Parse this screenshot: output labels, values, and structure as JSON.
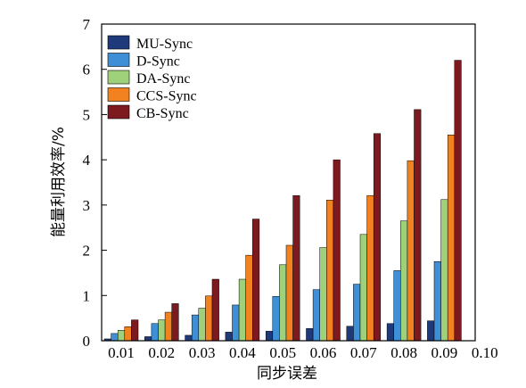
{
  "chart_data": {
    "type": "bar",
    "title": "",
    "xlabel": "同步误差",
    "ylabel": "能量利用效率/%",
    "x_ticks": [
      "0.01",
      "0.02",
      "0.03",
      "0.04",
      "0.05",
      "0.06",
      "0.07",
      "0.08",
      "0.09",
      "0.10"
    ],
    "categories": [
      "0.01",
      "0.02",
      "0.03",
      "0.04",
      "0.05",
      "0.06",
      "0.07",
      "0.08",
      "0.09"
    ],
    "ylim": [
      0,
      7
    ],
    "y_ticks": [
      "0",
      "1",
      "2",
      "3",
      "4",
      "5",
      "6",
      "7"
    ],
    "grid": false,
    "legend_position": "top-left",
    "series": [
      {
        "name": "MU-Sync",
        "color": "#1f3a7a",
        "values": [
          0.04,
          0.09,
          0.12,
          0.19,
          0.21,
          0.27,
          0.32,
          0.38,
          0.44
        ]
      },
      {
        "name": "D-Sync",
        "color": "#3e8fd6",
        "values": [
          0.16,
          0.38,
          0.57,
          0.79,
          0.98,
          1.13,
          1.25,
          1.55,
          1.75
        ]
      },
      {
        "name": "DA-Sync",
        "color": "#9fd17a",
        "values": [
          0.23,
          0.46,
          0.72,
          1.36,
          1.68,
          2.06,
          2.35,
          2.65,
          3.12
        ]
      },
      {
        "name": "CCS-Sync",
        "color": "#f2821f",
        "values": [
          0.31,
          0.63,
          0.99,
          1.89,
          2.11,
          3.11,
          3.21,
          3.98,
          4.55
        ]
      },
      {
        "name": "CB-Sync",
        "color": "#7d1a1f",
        "values": [
          0.46,
          0.82,
          1.36,
          2.69,
          3.21,
          4.0,
          4.58,
          5.11,
          6.2
        ]
      }
    ]
  }
}
